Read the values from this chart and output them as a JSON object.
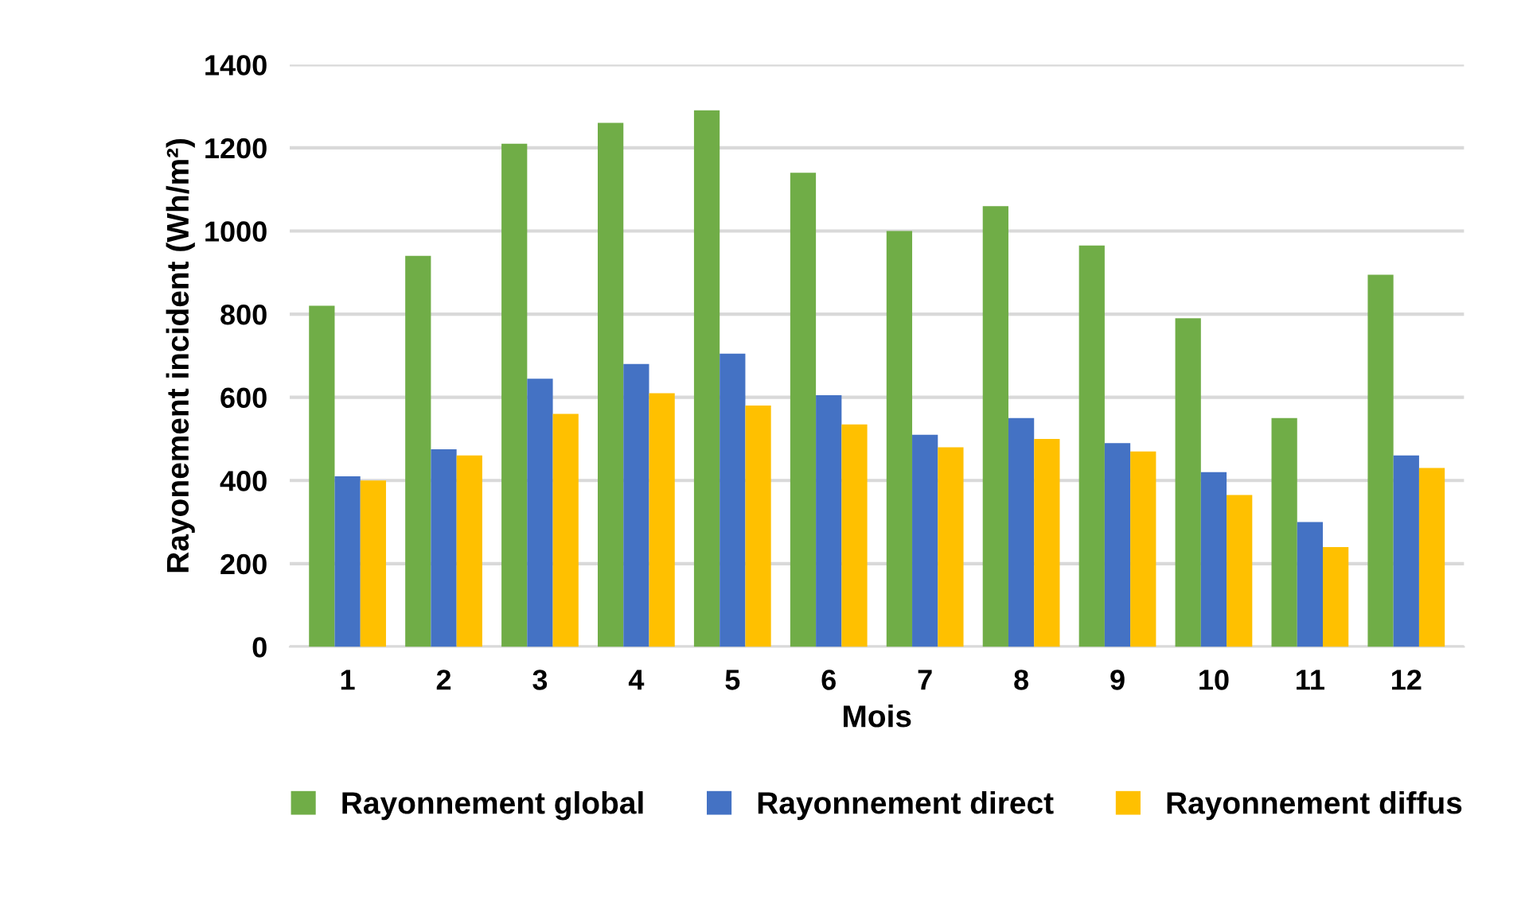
{
  "chart_data": {
    "type": "bar",
    "xlabel": "Mois",
    "ylabel": "Rayonement incident (Wh/m²)",
    "categories": [
      "1",
      "2",
      "3",
      "4",
      "5",
      "6",
      "7",
      "8",
      "9",
      "10",
      "11",
      "12"
    ],
    "series": [
      {
        "name": "Rayonnement global",
        "color": "#70ad47",
        "values": [
          820,
          940,
          1210,
          1260,
          1290,
          1140,
          1000,
          1060,
          965,
          790,
          550,
          895
        ]
      },
      {
        "name": "Rayonnement direct",
        "color": "#4472c4",
        "values": [
          410,
          475,
          645,
          680,
          705,
          605,
          510,
          550,
          490,
          420,
          300,
          460
        ]
      },
      {
        "name": "Rayonnement diffus",
        "color": "#ffc000",
        "values": [
          400,
          460,
          560,
          610,
          580,
          535,
          480,
          500,
          470,
          365,
          240,
          430
        ]
      }
    ],
    "ylim": [
      0,
      1400
    ],
    "yticks": [
      0,
      200,
      400,
      600,
      800,
      1000,
      1200,
      1400
    ],
    "grid": "y",
    "legend": "bottom"
  }
}
